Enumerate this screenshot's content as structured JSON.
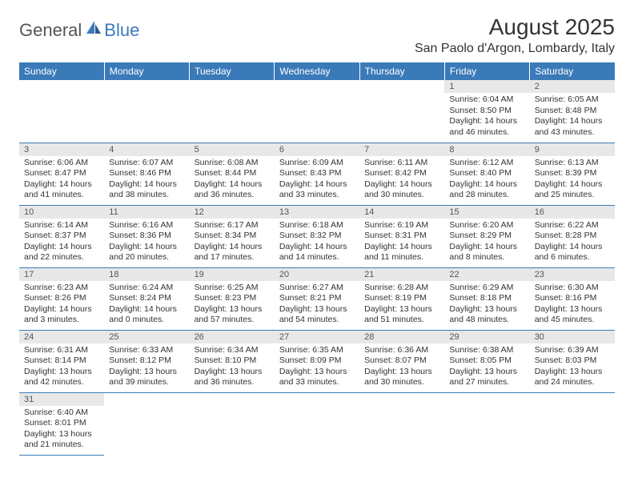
{
  "brand": {
    "part1": "General",
    "part2": "Blue"
  },
  "title": "August 2025",
  "location": "San Paolo d'Argon, Lombardy, Italy",
  "colors": {
    "header_bg": "#3a7ab8",
    "header_fg": "#ffffff",
    "daynum_bg": "#e8e8e8",
    "rule": "#3a7ab8"
  },
  "dayHeaders": [
    "Sunday",
    "Monday",
    "Tuesday",
    "Wednesday",
    "Thursday",
    "Friday",
    "Saturday"
  ],
  "startOffset": 5,
  "days": [
    {
      "n": 1,
      "sr": "6:04 AM",
      "ss": "8:50 PM",
      "dl": "14 hours and 46 minutes."
    },
    {
      "n": 2,
      "sr": "6:05 AM",
      "ss": "8:48 PM",
      "dl": "14 hours and 43 minutes."
    },
    {
      "n": 3,
      "sr": "6:06 AM",
      "ss": "8:47 PM",
      "dl": "14 hours and 41 minutes."
    },
    {
      "n": 4,
      "sr": "6:07 AM",
      "ss": "8:46 PM",
      "dl": "14 hours and 38 minutes."
    },
    {
      "n": 5,
      "sr": "6:08 AM",
      "ss": "8:44 PM",
      "dl": "14 hours and 36 minutes."
    },
    {
      "n": 6,
      "sr": "6:09 AM",
      "ss": "8:43 PM",
      "dl": "14 hours and 33 minutes."
    },
    {
      "n": 7,
      "sr": "6:11 AM",
      "ss": "8:42 PM",
      "dl": "14 hours and 30 minutes."
    },
    {
      "n": 8,
      "sr": "6:12 AM",
      "ss": "8:40 PM",
      "dl": "14 hours and 28 minutes."
    },
    {
      "n": 9,
      "sr": "6:13 AM",
      "ss": "8:39 PM",
      "dl": "14 hours and 25 minutes."
    },
    {
      "n": 10,
      "sr": "6:14 AM",
      "ss": "8:37 PM",
      "dl": "14 hours and 22 minutes."
    },
    {
      "n": 11,
      "sr": "6:16 AM",
      "ss": "8:36 PM",
      "dl": "14 hours and 20 minutes."
    },
    {
      "n": 12,
      "sr": "6:17 AM",
      "ss": "8:34 PM",
      "dl": "14 hours and 17 minutes."
    },
    {
      "n": 13,
      "sr": "6:18 AM",
      "ss": "8:32 PM",
      "dl": "14 hours and 14 minutes."
    },
    {
      "n": 14,
      "sr": "6:19 AM",
      "ss": "8:31 PM",
      "dl": "14 hours and 11 minutes."
    },
    {
      "n": 15,
      "sr": "6:20 AM",
      "ss": "8:29 PM",
      "dl": "14 hours and 8 minutes."
    },
    {
      "n": 16,
      "sr": "6:22 AM",
      "ss": "8:28 PM",
      "dl": "14 hours and 6 minutes."
    },
    {
      "n": 17,
      "sr": "6:23 AM",
      "ss": "8:26 PM",
      "dl": "14 hours and 3 minutes."
    },
    {
      "n": 18,
      "sr": "6:24 AM",
      "ss": "8:24 PM",
      "dl": "14 hours and 0 minutes."
    },
    {
      "n": 19,
      "sr": "6:25 AM",
      "ss": "8:23 PM",
      "dl": "13 hours and 57 minutes."
    },
    {
      "n": 20,
      "sr": "6:27 AM",
      "ss": "8:21 PM",
      "dl": "13 hours and 54 minutes."
    },
    {
      "n": 21,
      "sr": "6:28 AM",
      "ss": "8:19 PM",
      "dl": "13 hours and 51 minutes."
    },
    {
      "n": 22,
      "sr": "6:29 AM",
      "ss": "8:18 PM",
      "dl": "13 hours and 48 minutes."
    },
    {
      "n": 23,
      "sr": "6:30 AM",
      "ss": "8:16 PM",
      "dl": "13 hours and 45 minutes."
    },
    {
      "n": 24,
      "sr": "6:31 AM",
      "ss": "8:14 PM",
      "dl": "13 hours and 42 minutes."
    },
    {
      "n": 25,
      "sr": "6:33 AM",
      "ss": "8:12 PM",
      "dl": "13 hours and 39 minutes."
    },
    {
      "n": 26,
      "sr": "6:34 AM",
      "ss": "8:10 PM",
      "dl": "13 hours and 36 minutes."
    },
    {
      "n": 27,
      "sr": "6:35 AM",
      "ss": "8:09 PM",
      "dl": "13 hours and 33 minutes."
    },
    {
      "n": 28,
      "sr": "6:36 AM",
      "ss": "8:07 PM",
      "dl": "13 hours and 30 minutes."
    },
    {
      "n": 29,
      "sr": "6:38 AM",
      "ss": "8:05 PM",
      "dl": "13 hours and 27 minutes."
    },
    {
      "n": 30,
      "sr": "6:39 AM",
      "ss": "8:03 PM",
      "dl": "13 hours and 24 minutes."
    },
    {
      "n": 31,
      "sr": "6:40 AM",
      "ss": "8:01 PM",
      "dl": "13 hours and 21 minutes."
    }
  ],
  "labels": {
    "sunrise": "Sunrise:",
    "sunset": "Sunset:",
    "daylight": "Daylight:"
  }
}
